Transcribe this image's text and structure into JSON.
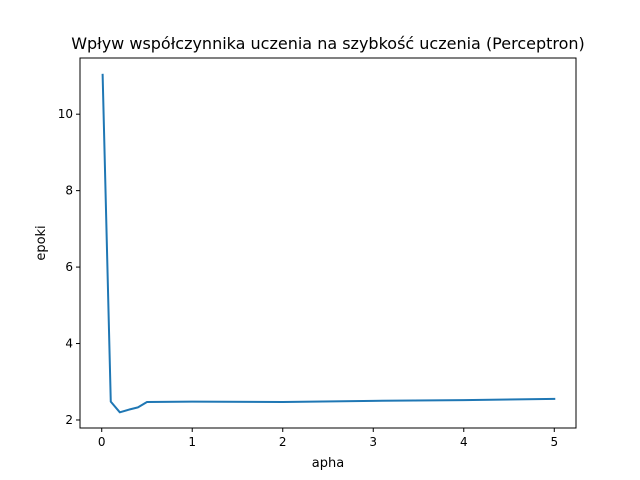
{
  "chart_data": {
    "type": "line",
    "title": "Wpływ współczynnika uczenia na szybkość uczenia (Perceptron)",
    "xlabel": "apha",
    "ylabel": "epoki",
    "xlim": [
      -0.24,
      5.24
    ],
    "ylim": [
      1.79,
      11.47
    ],
    "xticks": [
      0,
      1,
      2,
      3,
      4,
      5
    ],
    "yticks": [
      2,
      4,
      6,
      8,
      10
    ],
    "grid": false,
    "line_color": "#1f77b4",
    "series": [
      {
        "x": [
          0.01,
          0.1,
          0.2,
          0.3,
          0.4,
          0.5,
          1,
          2,
          3,
          4,
          5
        ],
        "y": [
          11.03,
          2.48,
          2.2,
          2.27,
          2.33,
          2.47,
          2.48,
          2.47,
          2.5,
          2.52,
          2.55
        ]
      }
    ]
  }
}
